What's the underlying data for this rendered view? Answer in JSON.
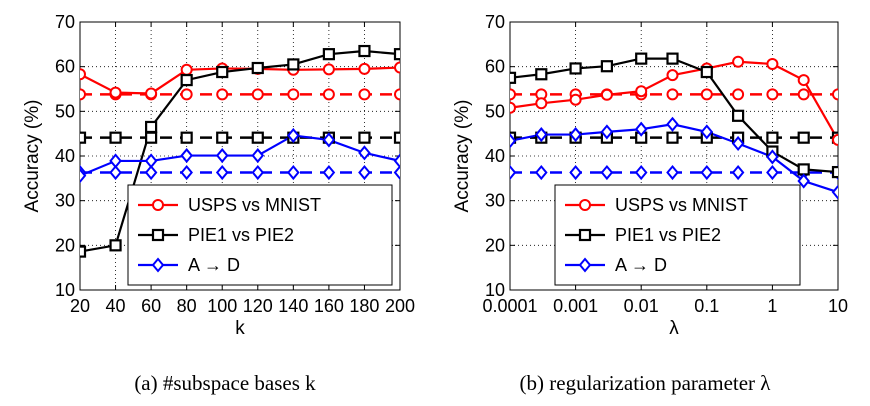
{
  "chart_data": [
    {
      "type": "line",
      "caption": "(a)  #subspace bases k",
      "xlabel": "k",
      "ylabel": "Accuracy (%)",
      "x": [
        20,
        40,
        60,
        80,
        100,
        120,
        140,
        160,
        180,
        200
      ],
      "xlim": [
        20,
        200
      ],
      "xticks": [
        "20",
        "40",
        "60",
        "80",
        "100",
        "120",
        "140",
        "160",
        "180",
        "200"
      ],
      "ylim": [
        10,
        70
      ],
      "yticks": [
        "10",
        "20",
        "30",
        "40",
        "50",
        "60",
        "70"
      ],
      "grid": true,
      "legend_position": "bottom-center",
      "series": [
        {
          "name": "USPS vs MNIST",
          "color": "#ff0000",
          "marker": "circle",
          "values": [
            58.3,
            54.2,
            54.0,
            59.3,
            59.6,
            59.5,
            59.3,
            59.4,
            59.5,
            59.8
          ]
        },
        {
          "name": "PIE1 vs PIE2",
          "color": "#000000",
          "marker": "square",
          "values": [
            18.6,
            20.0,
            46.5,
            57.0,
            58.8,
            59.7,
            60.5,
            62.8,
            63.5,
            62.8
          ]
        },
        {
          "name": "A → D",
          "color": "#0000ff",
          "marker": "diamond",
          "values": [
            35.6,
            38.9,
            38.9,
            40.1,
            40.1,
            40.1,
            44.6,
            43.6,
            40.7,
            38.9
          ]
        }
      ],
      "baselines": [
        {
          "color": "#ff0000",
          "marker": "circle",
          "value": 53.8
        },
        {
          "color": "#000000",
          "marker": "square",
          "value": 44.1
        },
        {
          "color": "#0000ff",
          "marker": "diamond",
          "value": 36.3
        }
      ]
    },
    {
      "type": "line",
      "caption": "(b)  regularization parameter λ",
      "xlabel": "λ",
      "ylabel": "Accuracy (%)",
      "x": [
        0.0001,
        0.0003,
        0.001,
        0.003,
        0.01,
        0.03,
        0.1,
        0.3,
        1,
        3,
        10
      ],
      "xscale": "log",
      "xlim": [
        0.0001,
        10
      ],
      "xticks": [
        "0.0001",
        "0.001",
        "0.01",
        "0.1",
        "1",
        "10"
      ],
      "ylim": [
        10,
        70
      ],
      "yticks": [
        "10",
        "20",
        "30",
        "40",
        "50",
        "60",
        "70"
      ],
      "grid": true,
      "legend_position": "bottom-center",
      "series": [
        {
          "name": "USPS vs MNIST",
          "color": "#ff0000",
          "marker": "circle",
          "values": [
            50.8,
            51.8,
            52.6,
            53.7,
            54.5,
            58.1,
            59.6,
            61.1,
            60.6,
            57.0,
            43.6
          ]
        },
        {
          "name": "PIE1 vs PIE2",
          "color": "#000000",
          "marker": "square",
          "values": [
            57.5,
            58.3,
            59.6,
            60.1,
            61.8,
            61.8,
            58.8,
            49.0,
            41.0,
            37.0,
            36.4
          ]
        },
        {
          "name": "A → D",
          "color": "#0000ff",
          "marker": "diamond",
          "values": [
            43.4,
            44.8,
            44.8,
            45.4,
            46.0,
            47.1,
            45.4,
            42.8,
            39.8,
            34.4,
            31.9
          ]
        }
      ],
      "baselines": [
        {
          "color": "#ff0000",
          "marker": "circle",
          "value": 53.8
        },
        {
          "color": "#000000",
          "marker": "square",
          "value": 44.1
        },
        {
          "color": "#0000ff",
          "marker": "diamond",
          "value": 36.3
        }
      ]
    }
  ]
}
